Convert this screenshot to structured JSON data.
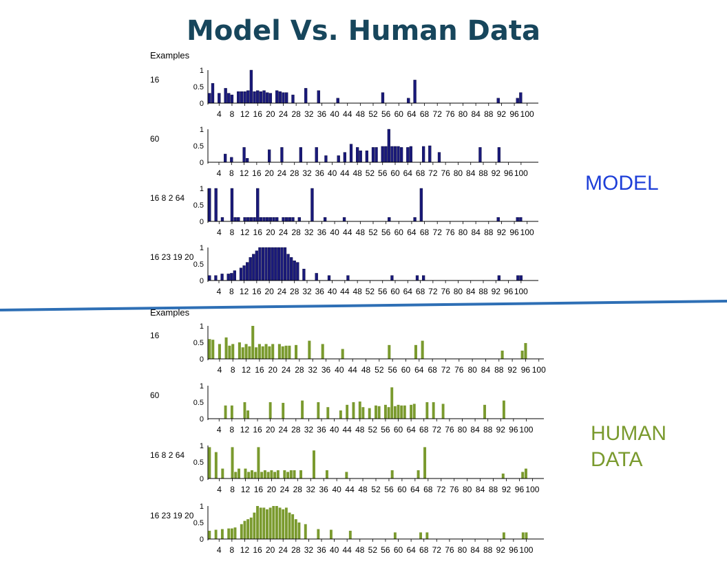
{
  "title": "Model Vs. Human Data",
  "labels": {
    "model": "MODEL",
    "human": "HUMAN\nDATA"
  },
  "colors": {
    "title": "#17465c",
    "model": "#1a1a7a",
    "human": "#7a9a2e",
    "model_label": "#1e3fd8",
    "divider": "#2e6fb5"
  },
  "chart_data": {
    "type": "bar",
    "x_tick_labels": [
      "4",
      "8",
      "12",
      "16",
      "20",
      "24",
      "28",
      "32",
      "36",
      "40",
      "44",
      "48",
      "52",
      "56",
      "60",
      "64",
      "68",
      "72",
      "76",
      "80",
      "84",
      "88",
      "92",
      "96",
      "100"
    ],
    "examples_heading": "Examples",
    "ylim": [
      0,
      1
    ],
    "y_ticks": [
      "1",
      "0.5",
      "0"
    ],
    "groups": [
      {
        "name": "model",
        "panels": [
          {
            "example": "16",
            "values": [
              0.3,
              0.6,
              0,
              0.3,
              0,
              0.45,
              0.3,
              0.25,
              0,
              0.35,
              0.35,
              0.35,
              0.38,
              1,
              0.35,
              0.38,
              0.35,
              0.38,
              0.32,
              0.3,
              0,
              0.38,
              0.35,
              0.32,
              0.32,
              0,
              0.25,
              0,
              0,
              0,
              0.45,
              0,
              0,
              0,
              0.38,
              0,
              0,
              0,
              0,
              0,
              0.15,
              0,
              0,
              0,
              0,
              0,
              0,
              0,
              0,
              0,
              0,
              0,
              0,
              0,
              0.32,
              0,
              0,
              0,
              0,
              0,
              0,
              0,
              0.15,
              0,
              0.7,
              0,
              0,
              0,
              0,
              0,
              0,
              0,
              0,
              0,
              0,
              0,
              0,
              0,
              0,
              0,
              0,
              0,
              0,
              0,
              0,
              0,
              0,
              0,
              0,
              0,
              0.15,
              0,
              0,
              0,
              0,
              0,
              0.15,
              0.32,
              0,
              0,
              0,
              0,
              0
            ]
          },
          {
            "example": "60",
            "values": [
              0,
              0,
              0,
              0,
              0,
              0.25,
              0,
              0.15,
              0,
              0,
              0,
              0.45,
              0.12,
              0,
              0,
              0,
              0,
              0,
              0,
              0.38,
              0,
              0,
              0,
              0.45,
              0,
              0,
              0,
              0,
              0,
              0.45,
              0,
              0,
              0,
              0,
              0.45,
              0,
              0,
              0.2,
              0,
              0,
              0,
              0.2,
              0,
              0.3,
              0,
              0.55,
              0,
              0.45,
              0.35,
              0,
              0.35,
              0,
              0.45,
              0.45,
              0,
              0.48,
              0.48,
              1,
              0.48,
              0.48,
              0.48,
              0.45,
              0,
              0.45,
              0.48,
              0,
              0,
              0,
              0.48,
              0,
              0.5,
              0,
              0,
              0.3,
              0,
              0,
              0,
              0,
              0,
              0,
              0,
              0,
              0,
              0,
              0,
              0,
              0.45,
              0,
              0,
              0,
              0,
              0,
              0.45,
              0,
              0,
              0,
              0,
              0,
              0,
              0,
              0,
              0,
              0,
              0,
              0
            ]
          },
          {
            "example": "16 8 2 64",
            "values": [
              1,
              0,
              1,
              0,
              0.12,
              0,
              0,
              1,
              0.12,
              0.12,
              0,
              0.12,
              0.12,
              0.12,
              0.12,
              1,
              0.12,
              0.12,
              0.12,
              0.12,
              0.12,
              0.12,
              0,
              0.12,
              0.12,
              0.12,
              0.12,
              0,
              0.12,
              0,
              0,
              0,
              1,
              0,
              0,
              0,
              0.12,
              0,
              0,
              0,
              0,
              0,
              0.12,
              0,
              0,
              0,
              0,
              0,
              0,
              0,
              0,
              0,
              0,
              0,
              0,
              0,
              0.12,
              0,
              0,
              0,
              0,
              0,
              0,
              0,
              0.12,
              0,
              1,
              0,
              0,
              0,
              0,
              0,
              0,
              0,
              0,
              0,
              0,
              0,
              0,
              0,
              0,
              0,
              0,
              0,
              0,
              0,
              0,
              0,
              0,
              0,
              0.12,
              0,
              0,
              0,
              0,
              0,
              0.12,
              0.12,
              0,
              0,
              0,
              0,
              0
            ]
          },
          {
            "example": "16 23 19 20",
            "values": [
              0.15,
              0,
              0.15,
              0,
              0.2,
              0,
              0.2,
              0.22,
              0.3,
              0,
              0.38,
              0.45,
              0.55,
              0.7,
              0.8,
              0.9,
              1,
              1,
              1,
              1,
              1,
              1,
              1,
              1,
              1,
              0.8,
              0.7,
              0.6,
              0.55,
              0,
              0.35,
              0,
              0,
              0,
              0.22,
              0,
              0,
              0,
              0.15,
              0,
              0,
              0,
              0,
              0,
              0.15,
              0,
              0,
              0,
              0,
              0,
              0,
              0,
              0,
              0,
              0,
              0,
              0,
              0,
              0.15,
              0,
              0,
              0,
              0,
              0,
              0,
              0,
              0.15,
              0,
              0.15,
              0,
              0,
              0,
              0,
              0,
              0,
              0,
              0,
              0,
              0,
              0,
              0,
              0,
              0,
              0,
              0,
              0,
              0,
              0,
              0,
              0,
              0,
              0,
              0.15,
              0,
              0,
              0,
              0,
              0,
              0.15,
              0.15,
              0,
              0,
              0,
              0,
              0
            ]
          }
        ]
      },
      {
        "name": "human",
        "panels": [
          {
            "example": "16",
            "values": [
              0.6,
              0.58,
              0,
              0.45,
              0,
              0.65,
              0.4,
              0.45,
              0,
              0.5,
              0.35,
              0.45,
              0.38,
              1,
              0.35,
              0.45,
              0.38,
              0.45,
              0.38,
              0.45,
              0,
              0.45,
              0.38,
              0.4,
              0.4,
              0,
              0.42,
              0,
              0,
              0,
              0.55,
              0,
              0,
              0,
              0.45,
              0,
              0,
              0,
              0,
              0,
              0.3,
              0,
              0,
              0,
              0,
              0,
              0,
              0,
              0,
              0,
              0,
              0,
              0,
              0,
              0.42,
              0,
              0,
              0,
              0,
              0,
              0,
              0,
              0.42,
              0,
              0.55,
              0,
              0,
              0,
              0,
              0,
              0,
              0,
              0,
              0,
              0,
              0,
              0,
              0,
              0,
              0,
              0,
              0,
              0,
              0,
              0,
              0,
              0,
              0,
              0.25,
              0,
              0,
              0,
              0,
              0,
              0.25,
              0.48,
              0,
              0,
              0,
              0,
              0
            ]
          },
          {
            "example": "60",
            "values": [
              0,
              0,
              0,
              0,
              0,
              0.4,
              0,
              0.4,
              0,
              0,
              0,
              0.5,
              0.25,
              0,
              0,
              0,
              0,
              0,
              0,
              0.5,
              0,
              0,
              0,
              0.48,
              0,
              0,
              0,
              0,
              0,
              0.55,
              0,
              0,
              0,
              0,
              0.5,
              0,
              0,
              0.35,
              0,
              0,
              0,
              0.25,
              0,
              0.42,
              0,
              0.5,
              0,
              0.52,
              0.35,
              0,
              0.32,
              0,
              0.4,
              0.38,
              0,
              0.42,
              0.35,
              0.95,
              0.38,
              0.42,
              0.4,
              0.4,
              0,
              0.42,
              0.45,
              0,
              0,
              0,
              0.5,
              0,
              0.5,
              0,
              0,
              0.45,
              0,
              0,
              0,
              0,
              0,
              0,
              0,
              0,
              0,
              0,
              0,
              0,
              0.42,
              0,
              0,
              0,
              0,
              0,
              0.55,
              0,
              0,
              0,
              0,
              0,
              0,
              0,
              0,
              0,
              0,
              0,
              0
            ]
          },
          {
            "example": "16 8 2 64",
            "values": [
              0.95,
              0,
              0.8,
              0,
              0.3,
              0,
              0,
              0.95,
              0.2,
              0.3,
              0,
              0.3,
              0.2,
              0.25,
              0.2,
              0.95,
              0.2,
              0.25,
              0.2,
              0.25,
              0.2,
              0.25,
              0,
              0.25,
              0.2,
              0.25,
              0.25,
              0,
              0.25,
              0,
              0,
              0,
              0.85,
              0,
              0,
              0,
              0.25,
              0,
              0,
              0,
              0,
              0,
              0.2,
              0,
              0,
              0,
              0,
              0,
              0,
              0,
              0,
              0,
              0,
              0,
              0,
              0,
              0.25,
              0,
              0,
              0,
              0,
              0,
              0,
              0,
              0.25,
              0,
              0.95,
              0,
              0,
              0,
              0,
              0,
              0,
              0,
              0,
              0,
              0,
              0,
              0,
              0,
              0,
              0,
              0,
              0,
              0,
              0,
              0,
              0,
              0,
              0,
              0.15,
              0,
              0,
              0,
              0,
              0,
              0.2,
              0.3,
              0,
              0,
              0,
              0,
              0
            ]
          },
          {
            "example": "16 23 19 20",
            "values": [
              0.25,
              0,
              0.28,
              0,
              0.3,
              0,
              0.32,
              0.32,
              0.35,
              0,
              0.45,
              0.55,
              0.6,
              0.65,
              0.8,
              1,
              0.95,
              0.95,
              0.9,
              0.95,
              1,
              1,
              0.95,
              0.9,
              0.95,
              0.8,
              0.75,
              0.6,
              0.5,
              0,
              0.45,
              0,
              0,
              0,
              0.3,
              0,
              0,
              0,
              0.28,
              0,
              0,
              0,
              0,
              0,
              0.25,
              0,
              0,
              0,
              0,
              0,
              0,
              0,
              0,
              0,
              0,
              0,
              0,
              0,
              0.2,
              0,
              0,
              0,
              0,
              0,
              0,
              0,
              0.2,
              0,
              0.2,
              0,
              0,
              0,
              0,
              0,
              0,
              0,
              0,
              0,
              0,
              0,
              0,
              0,
              0,
              0,
              0,
              0,
              0,
              0,
              0,
              0,
              0,
              0,
              0.2,
              0,
              0,
              0,
              0,
              0,
              0.2,
              0.2,
              0,
              0,
              0,
              0,
              0
            ]
          }
        ]
      }
    ]
  }
}
